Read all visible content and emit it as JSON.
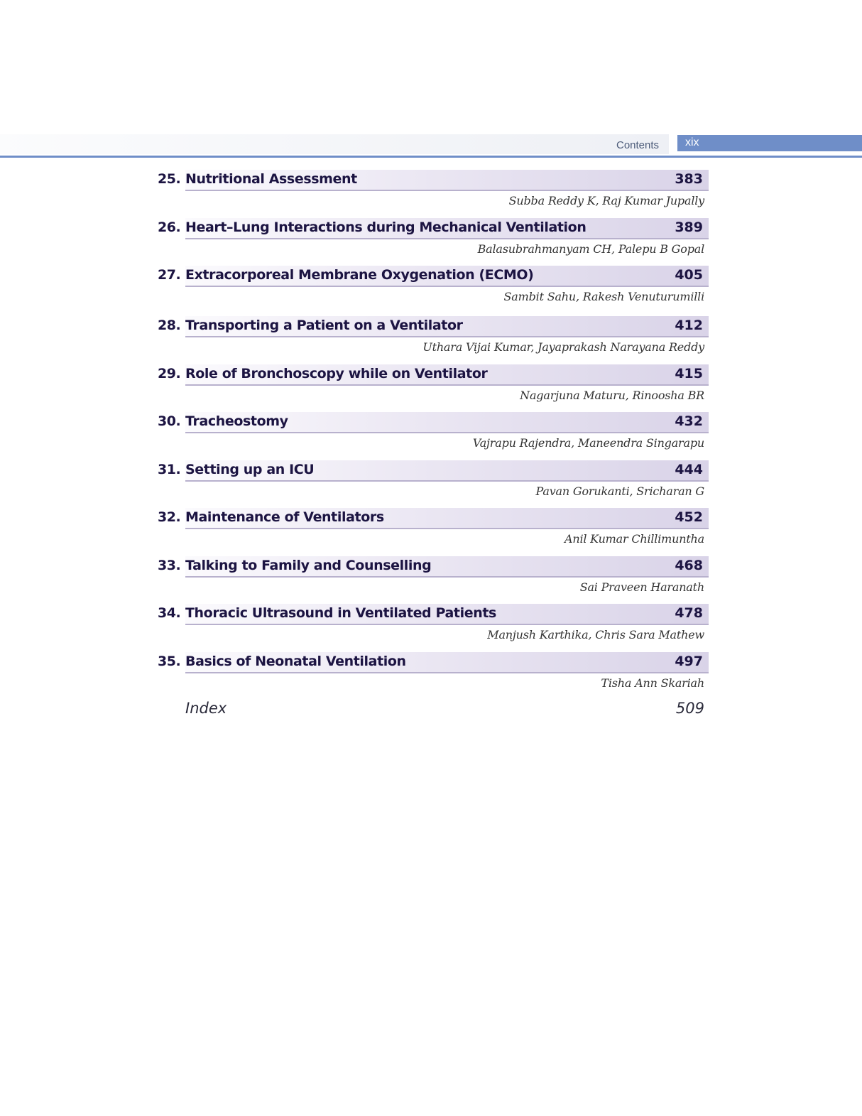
{
  "header": {
    "section": "Contents",
    "page": "xix",
    "accent": "#6f8ec8"
  },
  "entries": [
    {
      "number": "25.",
      "title": "Nutritional Assessment",
      "page": "383",
      "authors": "Subba Reddy K, Raj Kumar Jupally"
    },
    {
      "number": "26.",
      "title": "Heart–Lung Interactions during Mechanical Ventilation",
      "page": "389",
      "authors": "Balasubrahmanyam CH, Palepu B Gopal"
    },
    {
      "number": "27.",
      "title": "Extracorporeal Membrane Oxygenation (ECMO)",
      "page": "405",
      "authors": "Sambit Sahu, Rakesh Venuturumilli"
    },
    {
      "number": "28.",
      "title": "Transporting a Patient on a Ventilator",
      "page": "412",
      "authors": "Uthara Vijai Kumar, Jayaprakash Narayana Reddy"
    },
    {
      "number": "29.",
      "title": "Role of Bronchoscopy while on Ventilator",
      "page": "415",
      "authors": "Nagarjuna Maturu, Rinoosha BR"
    },
    {
      "number": "30.",
      "title": "Tracheostomy",
      "page": "432",
      "authors": "Vajrapu Rajendra, Maneendra Singarapu"
    },
    {
      "number": "31.",
      "title": "Setting up an ICU",
      "page": "444",
      "authors": "Pavan Gorukanti, Sricharan G"
    },
    {
      "number": "32.",
      "title": "Maintenance of Ventilators",
      "page": "452",
      "authors": "Anil Kumar Chillimuntha"
    },
    {
      "number": "33.",
      "title": "Talking to Family and Counselling",
      "page": "468",
      "authors": "Sai Praveen Haranath"
    },
    {
      "number": "34.",
      "title": "Thoracic Ultrasound in Ventilated Patients",
      "page": "478",
      "authors": "Manjush Karthika, Chris Sara Mathew"
    },
    {
      "number": "35.",
      "title": "Basics of Neonatal Ventilation",
      "page": "497",
      "authors": "Tisha Ann Skariah"
    }
  ],
  "index": {
    "label": "Index",
    "page": "509"
  }
}
